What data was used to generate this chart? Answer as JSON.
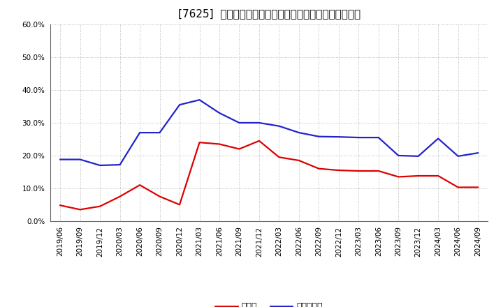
{
  "title": "[7625]  現須金、有利子負債の総資産に対する比率の推移",
  "x_labels": [
    "2019/06",
    "2019/09",
    "2019/12",
    "2020/03",
    "2020/06",
    "2020/09",
    "2020/12",
    "2021/03",
    "2021/06",
    "2021/09",
    "2021/12",
    "2022/03",
    "2022/06",
    "2022/09",
    "2022/12",
    "2023/03",
    "2023/06",
    "2023/09",
    "2023/12",
    "2024/03",
    "2024/06",
    "2024/09"
  ],
  "cash": [
    0.048,
    0.035,
    0.045,
    0.075,
    0.11,
    0.075,
    0.05,
    0.24,
    0.235,
    0.22,
    0.245,
    0.195,
    0.185,
    0.16,
    0.155,
    0.153,
    0.153,
    0.135,
    0.138,
    0.138,
    0.103,
    0.103
  ],
  "debt": [
    0.188,
    0.188,
    0.17,
    0.172,
    0.27,
    0.27,
    0.355,
    0.37,
    0.33,
    0.3,
    0.3,
    0.29,
    0.27,
    0.258,
    0.257,
    0.255,
    0.255,
    0.2,
    0.198,
    0.252,
    0.198,
    0.208
  ],
  "cash_color": "#dd0000",
  "debt_color": "#2222cc",
  "background_color": "#ffffff",
  "plot_bg_color": "#ffffff",
  "grid_color": "#aaaaaa",
  "ylim": [
    0.0,
    0.6
  ],
  "yticks": [
    0.0,
    0.1,
    0.2,
    0.3,
    0.4,
    0.5,
    0.6
  ],
  "legend_cash": "現須金",
  "legend_debt": "有利子負債",
  "title_fontsize": 11,
  "axis_fontsize": 7.5,
  "legend_fontsize": 9
}
